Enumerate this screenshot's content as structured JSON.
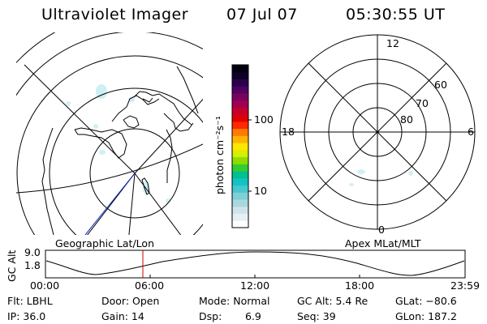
{
  "header": {
    "title": "Ultraviolet Imager",
    "date": "07 Jul 07",
    "time": "05:30:55 UT"
  },
  "map": {
    "label": "Geographic Lat/Lon"
  },
  "colorbar": {
    "unit_label": "photon cm⁻²s⁻¹",
    "ticks": [
      "100",
      "10"
    ],
    "colors": [
      "#ffffff",
      "#e6f0f2",
      "#cfe4ea",
      "#a8d8df",
      "#7fcfd7",
      "#45c8cf",
      "#14c1c4",
      "#00c08d",
      "#33cc33",
      "#8fdc00",
      "#d6ee00",
      "#ffe600",
      "#ffb300",
      "#ff7a00",
      "#ff2a00",
      "#e00000",
      "#c4002e",
      "#a0004f",
      "#7a0060",
      "#4f0060",
      "#2a004a",
      "#100028",
      "#000010"
    ]
  },
  "polar": {
    "label": "Apex MLat/MLT",
    "mlt_labels": {
      "top": "12",
      "left": "18",
      "right": "6",
      "bottom": "0"
    },
    "lat_labels": [
      "60",
      "70",
      "80"
    ]
  },
  "altitude_panel": {
    "ylabel": "GC Alt",
    "yticks": [
      "9.0",
      "1.8"
    ],
    "xticks": [
      "00:00",
      "06:00",
      "12:00",
      "18:00",
      "23:59"
    ],
    "marker_time": "05:30:55",
    "marker_color": "#cc0000"
  },
  "status": {
    "flt": "Flt: LBHL",
    "ip": "IP: 36.0",
    "door": "Door: Open",
    "gain": "Gain: 14",
    "mode": "Mode: Normal",
    "dsp_label": "Dsp:",
    "dsp_value": "6.9",
    "gcalt": "GC Alt: 5.4 Re",
    "seq": "Seq: 39",
    "glat": "GLat: −80.6",
    "glon": "GLon: 187.2"
  }
}
